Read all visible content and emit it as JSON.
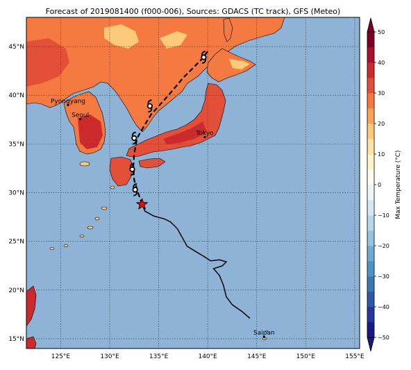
{
  "title": "Forecast of 2019081400 (f000-006), Sources: GDACS (TC track), GFS (Meteo)",
  "map": {
    "lon_range": [
      121.5,
      155.5
    ],
    "lat_range": [
      14,
      48
    ],
    "lon_ticks": [
      {
        "value": 125,
        "label": "125°E"
      },
      {
        "value": 130,
        "label": "130°E"
      },
      {
        "value": 135,
        "label": "135°E"
      },
      {
        "value": 140,
        "label": "140°E"
      },
      {
        "value": 145,
        "label": "145°E"
      },
      {
        "value": 150,
        "label": "150°E"
      },
      {
        "value": 155,
        "label": "155°E"
      }
    ],
    "lat_ticks": [
      {
        "value": 15,
        "label": "15°N"
      },
      {
        "value": 20,
        "label": "20°N"
      },
      {
        "value": 25,
        "label": "25°N"
      },
      {
        "value": 30,
        "label": "30°N"
      },
      {
        "value": 35,
        "label": "35°N"
      },
      {
        "value": 40,
        "label": "40°N"
      },
      {
        "value": 45,
        "label": "45°N"
      }
    ],
    "grid": true,
    "ocean_color": "#8fb3d6"
  },
  "cities": [
    {
      "name": "Pyongyang",
      "lon": 125.75,
      "lat": 39.0
    },
    {
      "name": "Seoul",
      "lon": 127.0,
      "lat": 37.55
    },
    {
      "name": "Tokyo",
      "lon": 139.7,
      "lat": 35.7
    },
    {
      "name": "Saipan",
      "lon": 145.75,
      "lat": 15.2
    }
  ],
  "storm": {
    "current_position": {
      "lon": 133.3,
      "lat": 28.8
    },
    "observed_track": [
      [
        144.3,
        17.1
      ],
      [
        143.5,
        17.8
      ],
      [
        142.5,
        18.5
      ],
      [
        141.9,
        19.3
      ],
      [
        141.6,
        20.5
      ],
      [
        141.2,
        21.5
      ],
      [
        140.6,
        22.2
      ],
      [
        141.5,
        22.5
      ],
      [
        141.9,
        22.9
      ],
      [
        141.2,
        23.1
      ],
      [
        140.3,
        23.0
      ],
      [
        139.7,
        23.4
      ],
      [
        138.7,
        24.0
      ],
      [
        137.9,
        24.5
      ],
      [
        137.4,
        25.4
      ],
      [
        136.9,
        26.3
      ],
      [
        136.2,
        27.0
      ],
      [
        135.6,
        27.3
      ],
      [
        134.5,
        27.6
      ],
      [
        133.6,
        28.1
      ],
      [
        133.3,
        28.8
      ]
    ],
    "forecast_track": [
      [
        133.3,
        28.8
      ],
      [
        132.9,
        30.0
      ],
      [
        132.5,
        31.3
      ],
      [
        132.4,
        32.5
      ],
      [
        132.5,
        34.0
      ],
      [
        132.8,
        35.6
      ],
      [
        133.6,
        37.0
      ],
      [
        134.2,
        38.0
      ],
      [
        136.0,
        40.0
      ],
      [
        137.5,
        41.8
      ],
      [
        139.3,
        43.6
      ],
      [
        140.0,
        44.5
      ]
    ],
    "forecast_symbols": [
      {
        "lon": 132.6,
        "lat": 30.3
      },
      {
        "lon": 132.3,
        "lat": 32.4
      },
      {
        "lon": 132.5,
        "lat": 35.6
      },
      {
        "lon": 134.1,
        "lat": 38.9
      },
      {
        "lon": 139.6,
        "lat": 43.9
      }
    ]
  },
  "colorbar": {
    "label": "Max Temperature (°C)",
    "min": -50,
    "max": 50,
    "ticks": [
      {
        "value": 50,
        "label": "50"
      },
      {
        "value": 40,
        "label": "40"
      },
      {
        "value": 30,
        "label": "30"
      },
      {
        "value": 20,
        "label": "20"
      },
      {
        "value": 10,
        "label": "10"
      },
      {
        "value": 0,
        "label": "0"
      },
      {
        "value": -10,
        "label": "−10"
      },
      {
        "value": -20,
        "label": "−20"
      },
      {
        "value": -30,
        "label": "−30"
      },
      {
        "value": -40,
        "label": "−40"
      },
      {
        "value": -50,
        "label": "−50"
      }
    ],
    "bands": [
      {
        "from": -50,
        "to": -45,
        "color": "#1a1a80"
      },
      {
        "from": -45,
        "to": -40,
        "color": "#25369e"
      },
      {
        "from": -40,
        "to": -35,
        "color": "#2e59a8"
      },
      {
        "from": -35,
        "to": -30,
        "color": "#3c77b6"
      },
      {
        "from": -30,
        "to": -25,
        "color": "#4d94c6"
      },
      {
        "from": -25,
        "to": -20,
        "color": "#6eabd2"
      },
      {
        "from": -20,
        "to": -15,
        "color": "#93c3df"
      },
      {
        "from": -15,
        "to": -10,
        "color": "#b5d7ea"
      },
      {
        "from": -10,
        "to": -5,
        "color": "#d3e8f2"
      },
      {
        "from": -5,
        "to": 0,
        "color": "#ecf6f8"
      },
      {
        "from": 0,
        "to": 5,
        "color": "#fbfbf1"
      },
      {
        "from": 5,
        "to": 10,
        "color": "#fff4c8"
      },
      {
        "from": 10,
        "to": 15,
        "color": "#fee4a2"
      },
      {
        "from": 15,
        "to": 20,
        "color": "#fdca7c"
      },
      {
        "from": 20,
        "to": 25,
        "color": "#fba25a"
      },
      {
        "from": 25,
        "to": 30,
        "color": "#f47a41"
      },
      {
        "from": 30,
        "to": 35,
        "color": "#e3503a"
      },
      {
        "from": 35,
        "to": 40,
        "color": "#cc2a2d"
      },
      {
        "from": 40,
        "to": 45,
        "color": "#a9122b"
      },
      {
        "from": 45,
        "to": 50,
        "color": "#7f0025"
      }
    ]
  },
  "land_colors": {
    "warm": "#f47a41",
    "mild": "#fdca7c",
    "hot": "#e3503a",
    "very_hot": "#cc2a2d"
  }
}
